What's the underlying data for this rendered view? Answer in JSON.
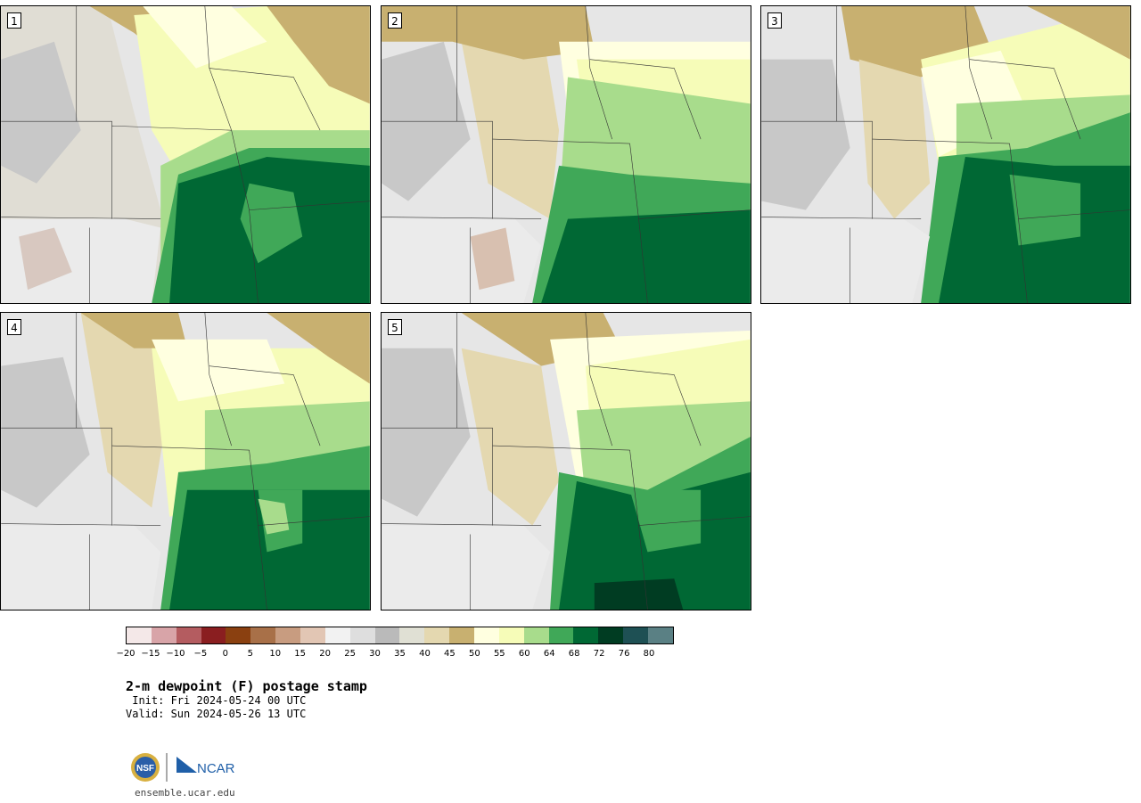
{
  "panels": [
    {
      "label": "1"
    },
    {
      "label": "2"
    },
    {
      "label": "3"
    },
    {
      "label": "4"
    },
    {
      "label": "5"
    }
  ],
  "colorbar": {
    "colors": [
      "#f4e8e8",
      "#d8a4a8",
      "#b45c60",
      "#8a1e20",
      "#8a4010",
      "#a87048",
      "#c89c80",
      "#e2c6b4",
      "#f2f2f2",
      "#dedede",
      "#bababa",
      "#e0e0d4",
      "#e4d8b0",
      "#c8b070",
      "#ffffe0",
      "#f6fcb8",
      "#a8dc8c",
      "#40a858",
      "#006834",
      "#003c22",
      "#1e5054",
      "#5a8084"
    ],
    "tick_labels": [
      "−20",
      "−15",
      "−10",
      "−5",
      "0",
      "5",
      "10",
      "15",
      "20",
      "25",
      "30",
      "35",
      "40",
      "45",
      "50",
      "55",
      "60",
      "64",
      "68",
      "72",
      "76",
      "80"
    ]
  },
  "title": "2-m dewpoint (F) postage stamp",
  "init_text": " Init: Fri 2024-05-24 00 UTC",
  "valid_text": "Valid: Sun 2024-05-26 13 UTC",
  "logo": {
    "nsf": "NSF",
    "ncar": "NCAR"
  },
  "site": "ensemble.ucar.edu"
}
